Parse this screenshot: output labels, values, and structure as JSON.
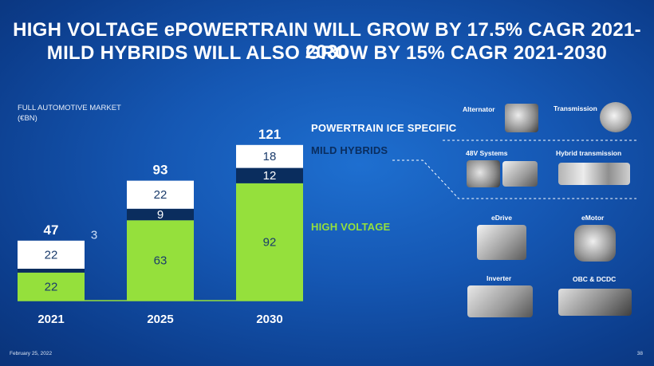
{
  "title": {
    "line1": "HIGH VOLTAGE ePOWERTRAIN WILL GROW BY 17.5% CAGR 2021-2030",
    "line2": "MILD HYBRIDS WILL ALSO GROW BY 15% CAGR 2021-2030"
  },
  "market_label": {
    "line1": "FULL AUTOMOTIVE MARKET",
    "line2": "(€BN)"
  },
  "segment_labels": {
    "ice": "POWERTRAIN ICE SPECIFIC",
    "mild": "MILD HYBRIDS",
    "hv": "HIGH VOLTAGE"
  },
  "colors": {
    "hv": "#95e03c",
    "mild": "#0a2d5e",
    "ice": "#ffffff",
    "text_dark": "#0a2d5e"
  },
  "chart_data": {
    "type": "bar",
    "stacked": true,
    "categories": [
      "2021",
      "2025",
      "2030"
    ],
    "series": [
      {
        "name": "HIGH VOLTAGE",
        "values": [
          22,
          63,
          92
        ]
      },
      {
        "name": "MILD HYBRIDS",
        "values": [
          3,
          9,
          12
        ]
      },
      {
        "name": "POWERTRAIN ICE SPECIFIC",
        "values": [
          22,
          22,
          18
        ]
      }
    ],
    "totals": [
      47,
      93,
      121
    ],
    "ylim": [
      0,
      125
    ]
  },
  "components": [
    {
      "label": "Alternator",
      "icon": "alternator-icon"
    },
    {
      "label": "Transmission",
      "icon": "transmission-icon"
    },
    {
      "label": "48V Systems",
      "icon": "48v-systems-icon"
    },
    {
      "label": "Hybrid transmission",
      "icon": "hybrid-transmission-icon"
    },
    {
      "label": "eDrive",
      "icon": "edrive-icon"
    },
    {
      "label": "eMotor",
      "icon": "emotor-icon"
    },
    {
      "label": "Inverter",
      "icon": "inverter-icon"
    },
    {
      "label": "OBC & DCDC",
      "icon": "obc-dcdc-icon"
    }
  ],
  "footer": {
    "date": "February 25, 2022",
    "page": "38"
  }
}
